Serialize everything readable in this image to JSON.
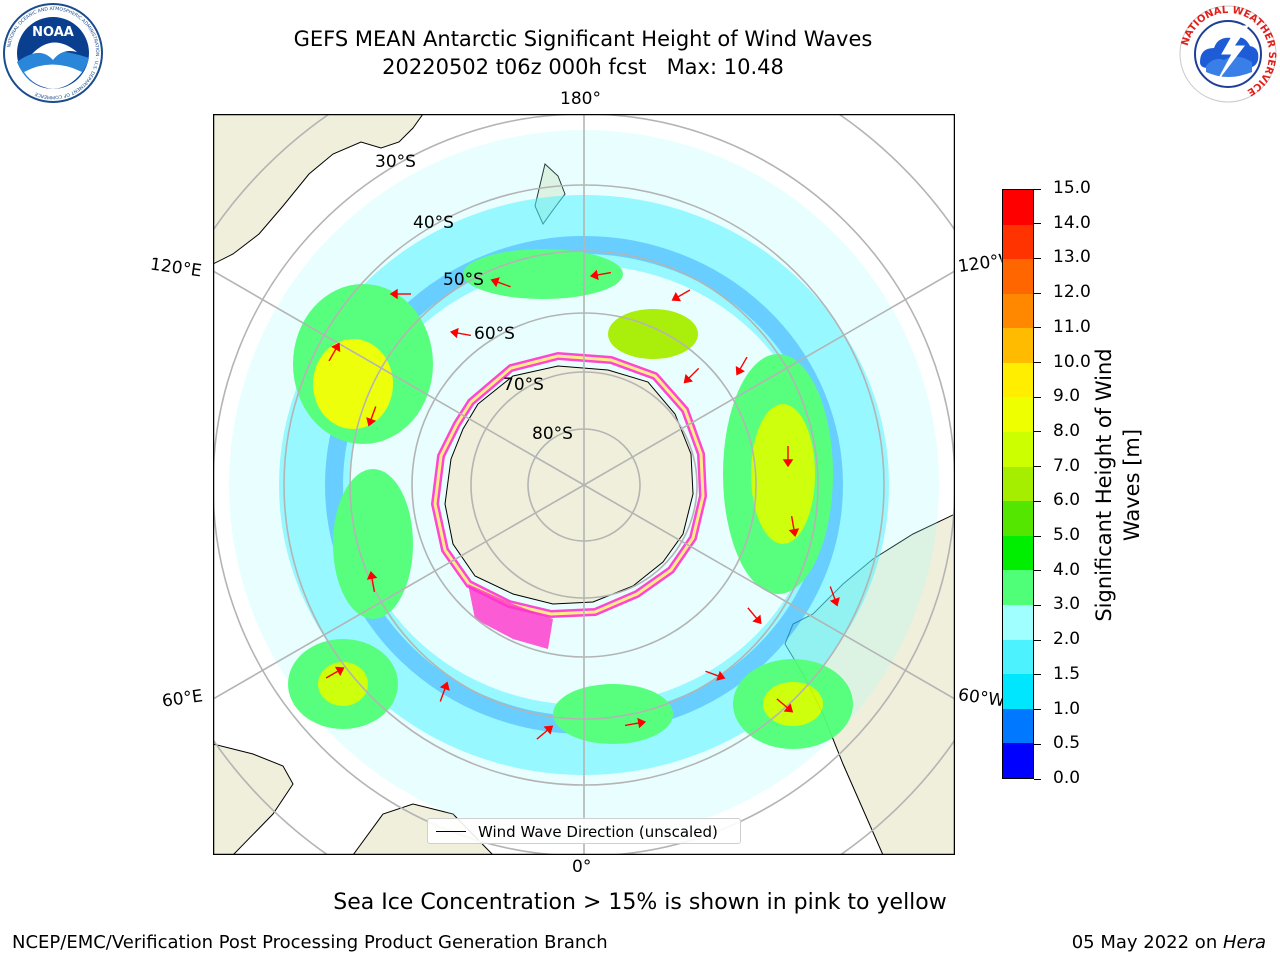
{
  "title": {
    "line1": "GEFS MEAN Antarctic Significant Height of Wind Waves",
    "line2": "20220502 t06z 000h fcst   Max: 10.48"
  },
  "logos": {
    "left": {
      "icon": "noaa-logo",
      "text": "NOAA",
      "ring_text": "NATIONAL OCEANIC AND ATMOSPHERIC ADMINISTRATION · U.S. DEPARTMENT OF COMMERCE"
    },
    "right": {
      "icon": "nws-logo",
      "ring_text": "NATIONAL WEATHER SERVICE"
    }
  },
  "map": {
    "projection": "south-polar-stereographic",
    "longitude_labels": {
      "top": "180°",
      "bottom": "0°",
      "upper_left": "120°E",
      "upper_right": "120°W",
      "lower_left": "60°E",
      "lower_right": "60°W"
    },
    "latitude_labels": [
      "30°S",
      "40°S",
      "50°S",
      "60°S",
      "70°S",
      "80°S"
    ],
    "colors": {
      "land": "#efefdb",
      "grid": "#b4b4b4",
      "arrow": "#ff0000",
      "ice_edge": "#ff33cc"
    }
  },
  "legend": {
    "label": "Wind Wave Direction (unscaled)"
  },
  "colorbar": {
    "label_line1": "Significant Height of Wind",
    "label_line2": "Waves [m]",
    "ticks": [
      "0.0",
      "0.5",
      "1.0",
      "1.5",
      "2.0",
      "3.0",
      "4.0",
      "5.0",
      "6.0",
      "7.0",
      "8.0",
      "9.0",
      "10.0",
      "11.0",
      "12.0",
      "13.0",
      "14.0",
      "15.0"
    ],
    "colors": [
      "#0000ff",
      "#0078ff",
      "#00e6ff",
      "#4df2ff",
      "#a0ffff",
      "#50ff78",
      "#00ee00",
      "#55e600",
      "#a6ee00",
      "#ccff00",
      "#eeff00",
      "#ffee00",
      "#ffbb00",
      "#ff8800",
      "#ff6600",
      "#ff3300",
      "#ff0000"
    ]
  },
  "subtitle": "Sea Ice Concentration > 15% is shown in pink to yellow",
  "footer": {
    "left": "NCEP/EMC/Verification Post Processing Product Generation Branch",
    "right_prefix": "05 May 2022 on ",
    "right_host": "Hera"
  }
}
